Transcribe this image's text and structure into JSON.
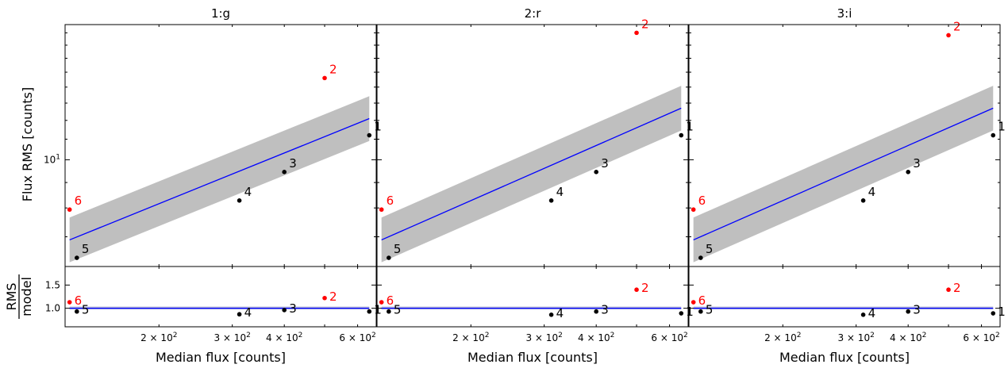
{
  "figure": {
    "ylabel_top": "Flux RMS [counts]",
    "ylabel_bottom_numerator": "RMS",
    "ylabel_bottom_denominator": "model",
    "xlabel": "Median flux [counts]"
  },
  "colors": {
    "outlier": "#ff0000",
    "inlier": "#000000",
    "model_line": "#0000ff",
    "model_band": "#bfbfbf",
    "ratio_band": "#b0b4d8"
  },
  "chart_data": [
    {
      "type": "scatter",
      "title": "1:g",
      "xscale": "log",
      "yscale_top": "log",
      "xlim": [
        119,
        665
      ],
      "ylim_top": [
        6.1,
        18.7
      ],
      "ylim_bottom": [
        0.6,
        1.9
      ],
      "x_ticks": [
        {
          "value": 200,
          "label": "2 × 10²"
        },
        {
          "value": 300,
          "label": "3 × 10²"
        },
        {
          "value": 400,
          "label": "4 × 10²"
        },
        {
          "value": 600,
          "label": "6 × 10²"
        }
      ],
      "y_ticks_top": [
        {
          "value": 10,
          "label": "10¹"
        }
      ],
      "y_ticks_bottom": [
        {
          "value": 1.0,
          "label": "1.0"
        },
        {
          "value": 1.5,
          "label": "1.5"
        }
      ],
      "points": [
        {
          "label": "1",
          "x": 640,
          "rms": 11.2,
          "ratio": 0.93,
          "outlier": false
        },
        {
          "label": "2",
          "x": 500,
          "rms": 14.6,
          "ratio": 1.22,
          "outlier": true
        },
        {
          "label": "3",
          "x": 400,
          "rms": 9.45,
          "ratio": 0.96,
          "outlier": false
        },
        {
          "label": "4",
          "x": 312,
          "rms": 8.28,
          "ratio": 0.87,
          "outlier": false
        },
        {
          "label": "5",
          "x": 127,
          "rms": 6.35,
          "ratio": 0.93,
          "outlier": false
        },
        {
          "label": "6",
          "x": 122,
          "rms": 7.94,
          "ratio": 1.13,
          "outlier": true
        }
      ],
      "model_line": [
        {
          "x": 122,
          "y": 6.9
        },
        {
          "x": 640,
          "y": 12.1
        }
      ],
      "model_band": {
        "half_width_top": 0.045,
        "ratio_low": 0.975,
        "ratio_high": 1.035
      }
    },
    {
      "type": "scatter",
      "title": "2:r",
      "xscale": "log",
      "yscale_top": "log",
      "xlim": [
        119,
        665
      ],
      "ylim_top": [
        6.1,
        18.7
      ],
      "ylim_bottom": [
        0.6,
        1.9
      ],
      "x_ticks": [
        {
          "value": 200,
          "label": "2 × 10²"
        },
        {
          "value": 300,
          "label": "3 × 10²"
        },
        {
          "value": 400,
          "label": "4 × 10²"
        },
        {
          "value": 600,
          "label": "6 × 10²"
        }
      ],
      "y_ticks_top": [],
      "y_ticks_bottom": [],
      "points": [
        {
          "label": "1",
          "x": 640,
          "rms": 11.2,
          "ratio": 0.89,
          "outlier": false
        },
        {
          "label": "2",
          "x": 500,
          "rms": 18.0,
          "ratio": 1.4,
          "outlier": true
        },
        {
          "label": "3",
          "x": 400,
          "rms": 9.45,
          "ratio": 0.93,
          "outlier": false
        },
        {
          "label": "4",
          "x": 312,
          "rms": 8.28,
          "ratio": 0.86,
          "outlier": false
        },
        {
          "label": "5",
          "x": 127,
          "rms": 6.35,
          "ratio": 0.93,
          "outlier": false
        },
        {
          "label": "6",
          "x": 122,
          "rms": 7.94,
          "ratio": 1.13,
          "outlier": true
        }
      ],
      "model_line": [
        {
          "x": 122,
          "y": 6.9
        },
        {
          "x": 640,
          "y": 12.7
        }
      ],
      "model_band": {
        "half_width_top": 0.045,
        "ratio_low": 0.975,
        "ratio_high": 1.035
      }
    },
    {
      "type": "scatter",
      "title": "3:i",
      "xscale": "log",
      "yscale_top": "log",
      "xlim": [
        119,
        665
      ],
      "ylim_top": [
        6.1,
        18.7
      ],
      "ylim_bottom": [
        0.6,
        1.9
      ],
      "x_ticks": [
        {
          "value": 200,
          "label": "2 × 10²"
        },
        {
          "value": 300,
          "label": "3 × 10²"
        },
        {
          "value": 400,
          "label": "4 × 10²"
        },
        {
          "value": 600,
          "label": "6 × 10²"
        }
      ],
      "y_ticks_top": [],
      "y_ticks_bottom": [],
      "points": [
        {
          "label": "1",
          "x": 640,
          "rms": 11.2,
          "ratio": 0.89,
          "outlier": false
        },
        {
          "label": "2",
          "x": 500,
          "rms": 17.8,
          "ratio": 1.4,
          "outlier": true
        },
        {
          "label": "3",
          "x": 400,
          "rms": 9.45,
          "ratio": 0.93,
          "outlier": false
        },
        {
          "label": "4",
          "x": 312,
          "rms": 8.28,
          "ratio": 0.86,
          "outlier": false
        },
        {
          "label": "5",
          "x": 127,
          "rms": 6.35,
          "ratio": 0.93,
          "outlier": false
        },
        {
          "label": "6",
          "x": 122,
          "rms": 7.94,
          "ratio": 1.13,
          "outlier": true
        }
      ],
      "model_line": [
        {
          "x": 122,
          "y": 6.9
        },
        {
          "x": 640,
          "y": 12.7
        }
      ],
      "model_band": {
        "half_width_top": 0.045,
        "ratio_low": 0.975,
        "ratio_high": 1.035
      }
    }
  ]
}
